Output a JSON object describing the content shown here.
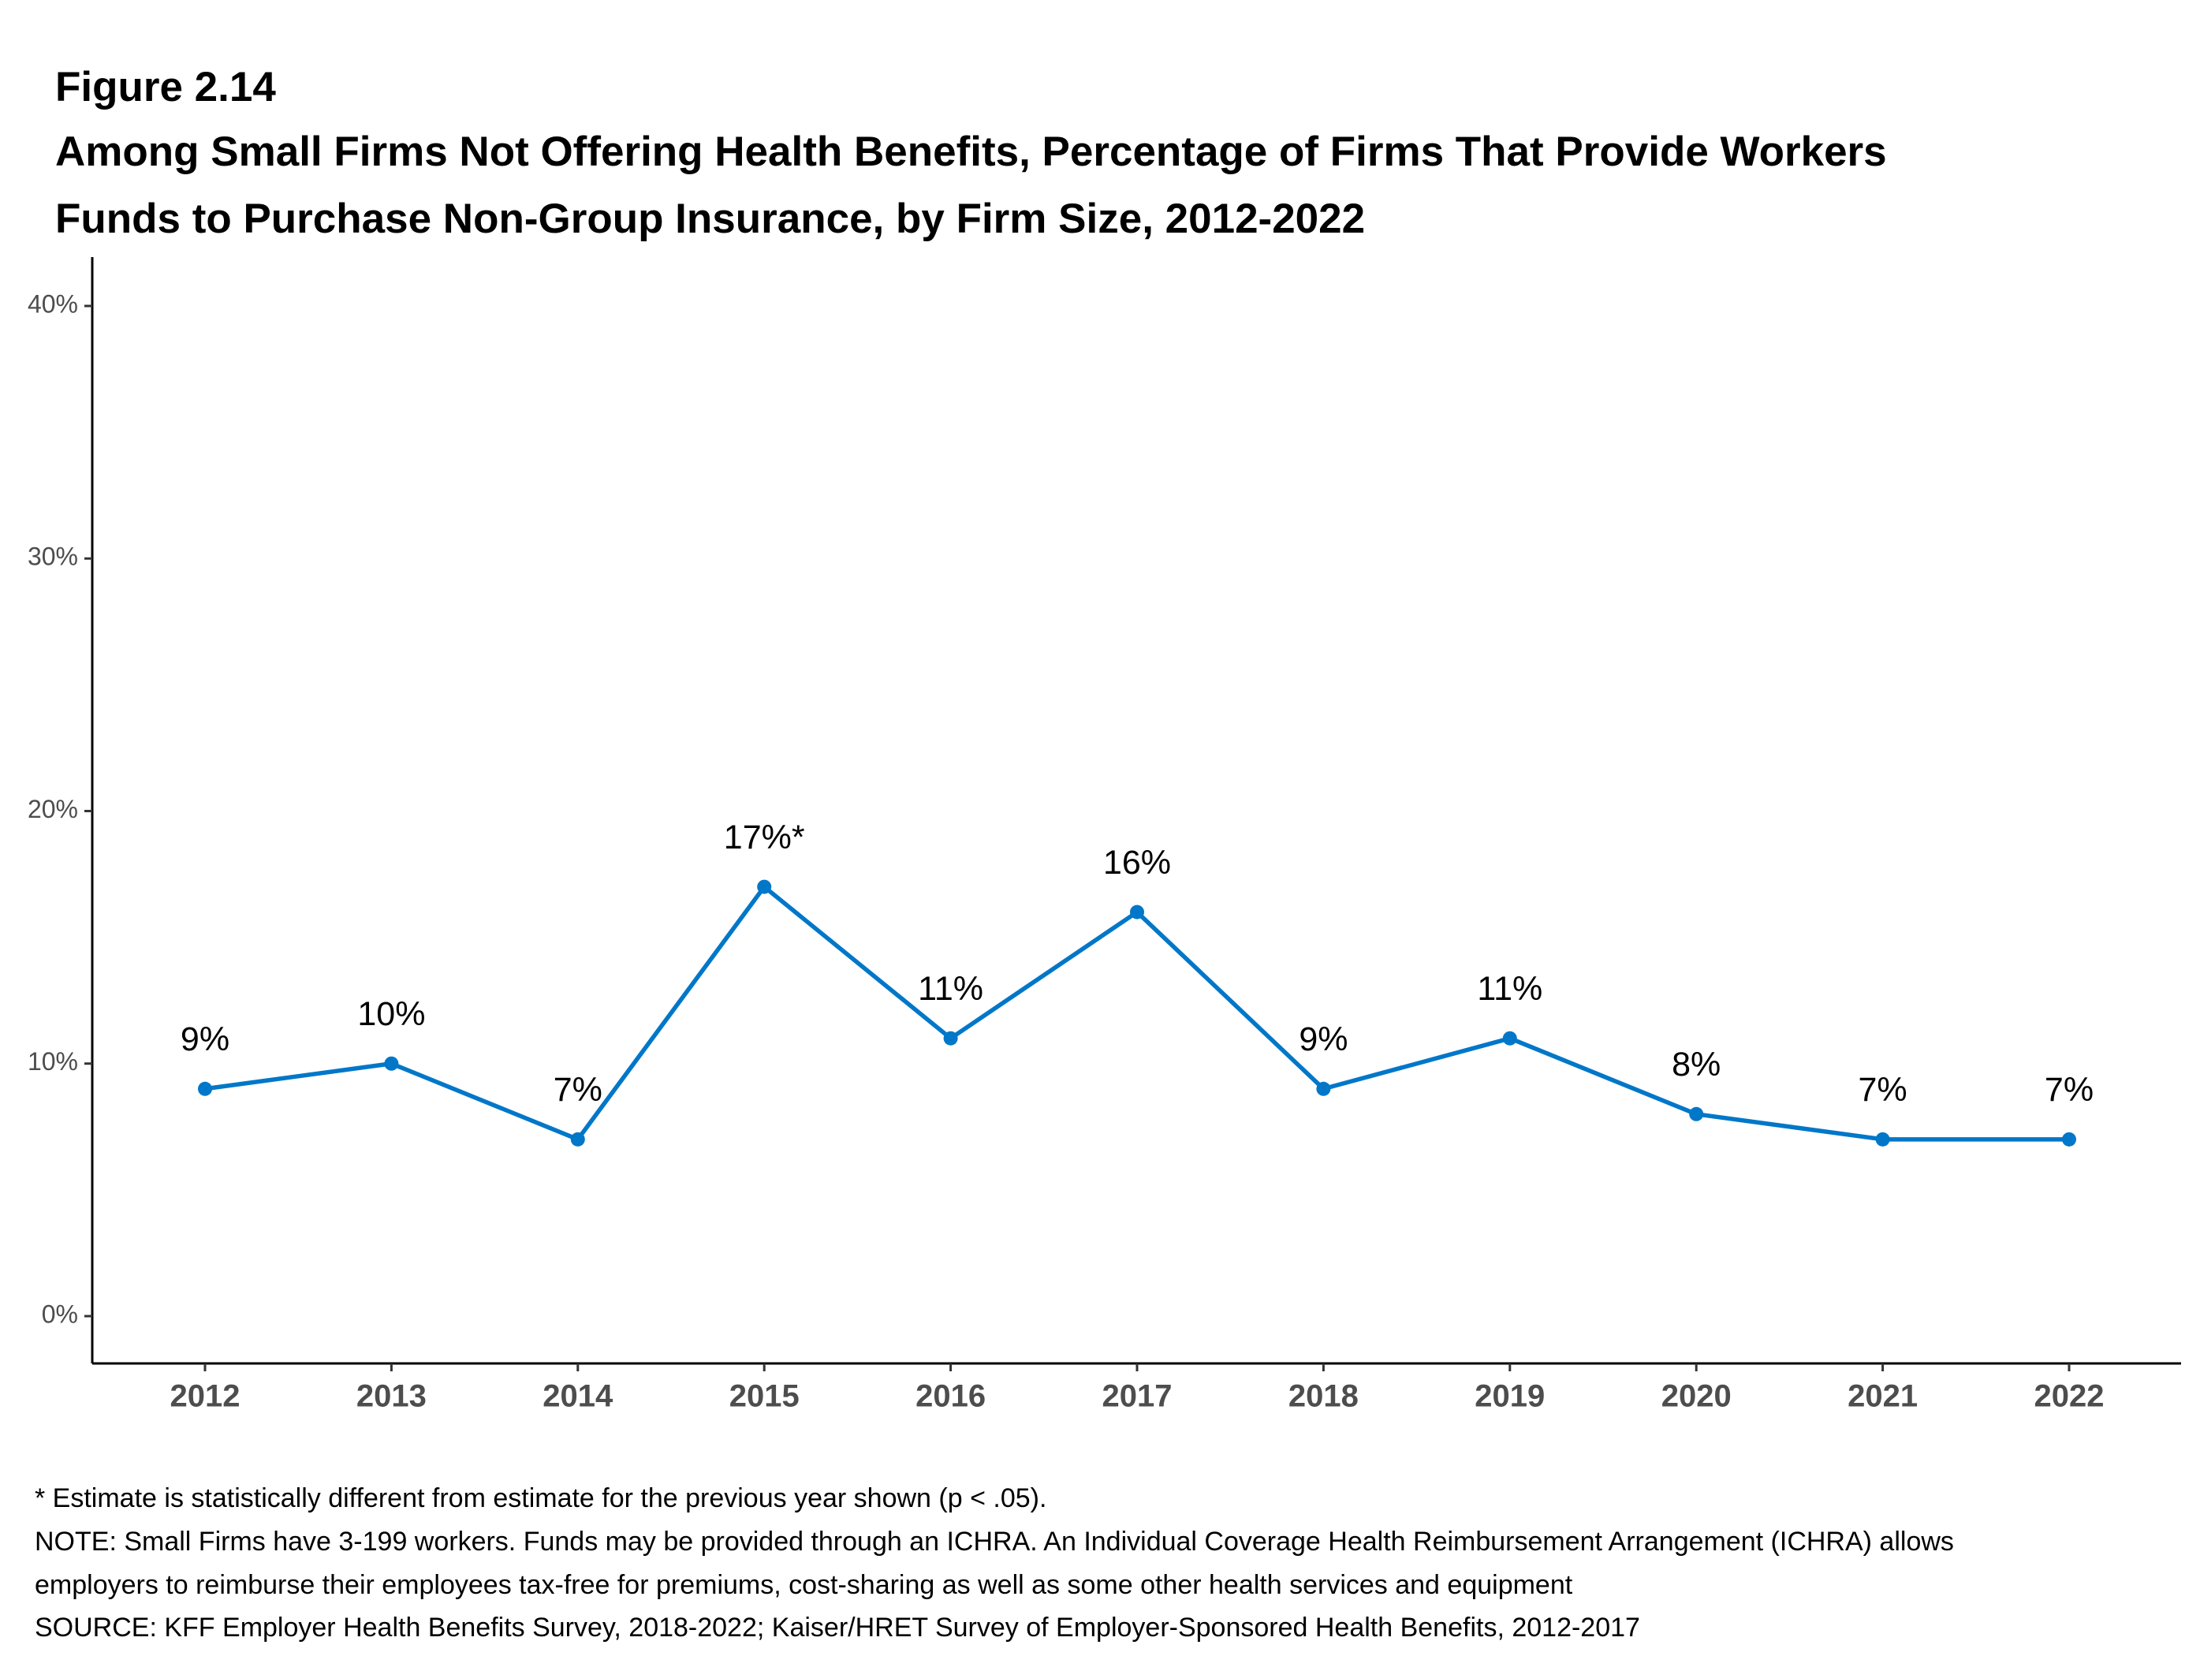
{
  "chart_data": {
    "type": "line",
    "figure": "Figure 2.14",
    "title": [
      "Among Small Firms Not Offering Health Benefits, Percentage of Firms That Provide Workers",
      "Funds to Purchase Non-Group Insurance, by Firm Size, 2012-2022"
    ],
    "categories": [
      "2012",
      "2013",
      "2014",
      "2015",
      "2016",
      "2017",
      "2018",
      "2019",
      "2020",
      "2021",
      "2022"
    ],
    "series": [
      {
        "name": "Small Firms",
        "color": "#0077c8",
        "values": [
          9,
          10,
          7,
          17,
          11,
          16,
          9,
          11,
          8,
          7,
          7
        ],
        "value_labels": [
          "9%",
          "10%",
          "7%",
          "17%*",
          "11%",
          "16%",
          "9%",
          "11%",
          "8%",
          "7%",
          "7%"
        ]
      }
    ],
    "ylim": [
      -1.9,
      40
    ],
    "yticks": [
      {
        "value": 0,
        "label": "0%"
      },
      {
        "value": 10,
        "label": "10%"
      },
      {
        "value": 20,
        "label": "20%"
      },
      {
        "value": 30,
        "label": "30%"
      },
      {
        "value": 40,
        "label": "40%"
      }
    ],
    "grid": false,
    "notes": [
      "* Estimate is statistically different from estimate for the previous year shown (p < .05).",
      "NOTE: Small Firms have 3-199 workers. Funds may be provided through an ICHRA. An Individual Coverage Health Reimbursement Arrangement (ICHRA) allows",
      "employers to reimburse their employees tax-free for premiums, cost-sharing as well as some other health services and equipment",
      "SOURCE: KFF Employer Health Benefits Survey, 2018-2022; Kaiser/HRET Survey of Employer-Sponsored Health Benefits, 2012-2017"
    ]
  }
}
